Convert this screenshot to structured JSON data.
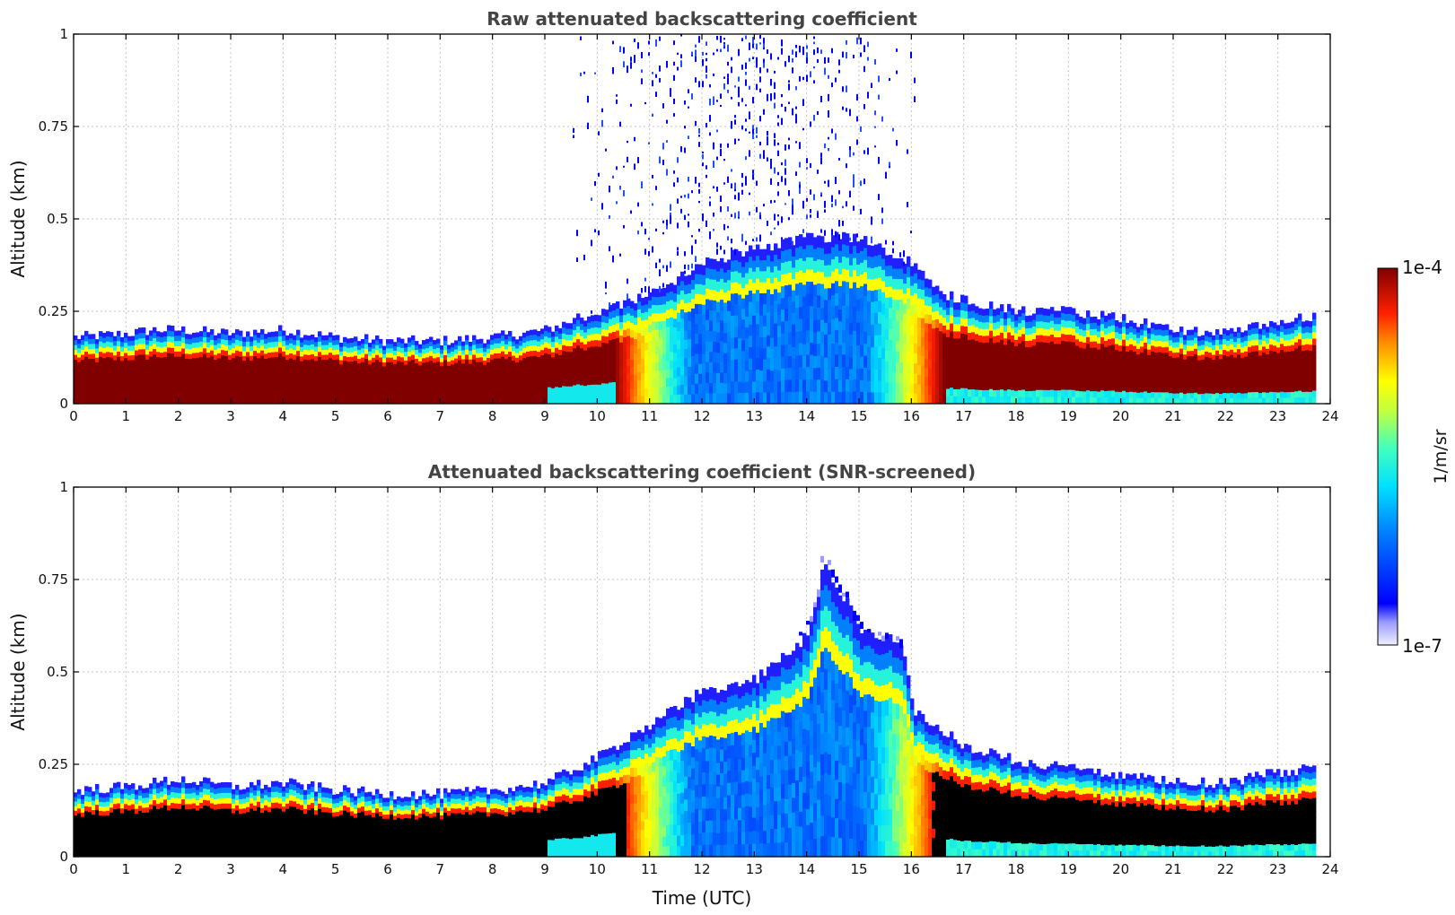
{
  "chart_data": [
    {
      "type": "heatmap",
      "title": "Raw attenuated backscattering coefficient",
      "xlabel": "",
      "ylabel": "Altitude (km)",
      "xlim": [
        0,
        24
      ],
      "ylim": [
        0,
        1
      ],
      "xticks": [
        "0",
        "1",
        "2",
        "3",
        "4",
        "5",
        "6",
        "7",
        "8",
        "9",
        "10",
        "11",
        "12",
        "13",
        "14",
        "15",
        "16",
        "17",
        "18",
        "19",
        "20",
        "21",
        "22",
        "23",
        "24"
      ],
      "yticks": [
        "0",
        "0.25",
        "0.5",
        "0.75",
        "1"
      ],
      "grid": true,
      "screened": false,
      "data_end_hour": 23.7,
      "boundary_layer_top_km": [
        [
          0,
          0.18
        ],
        [
          1,
          0.19
        ],
        [
          1.5,
          0.2
        ],
        [
          2,
          0.2
        ],
        [
          3,
          0.19
        ],
        [
          4,
          0.2
        ],
        [
          5,
          0.18
        ],
        [
          6,
          0.17
        ],
        [
          7,
          0.17
        ],
        [
          8,
          0.18
        ],
        [
          9,
          0.2
        ],
        [
          10,
          0.25
        ],
        [
          11,
          0.3
        ],
        [
          12,
          0.38
        ],
        [
          13,
          0.42
        ],
        [
          14,
          0.45
        ],
        [
          15,
          0.45
        ],
        [
          16,
          0.38
        ],
        [
          16.5,
          0.3
        ],
        [
          17,
          0.28
        ],
        [
          18,
          0.25
        ],
        [
          19,
          0.25
        ],
        [
          20,
          0.23
        ],
        [
          21,
          0.2
        ],
        [
          22,
          0.19
        ],
        [
          23,
          0.22
        ],
        [
          23.7,
          0.24
        ]
      ],
      "noise_region_hours": [
        9.5,
        16.1
      ]
    },
    {
      "type": "heatmap",
      "title": "Attenuated backscattering coefficient (SNR-screened)",
      "xlabel": "Time (UTC)",
      "ylabel": "Altitude (km)",
      "xlim": [
        0,
        24
      ],
      "ylim": [
        0,
        1
      ],
      "xticks": [
        "0",
        "1",
        "2",
        "3",
        "4",
        "5",
        "6",
        "7",
        "8",
        "9",
        "10",
        "11",
        "12",
        "13",
        "14",
        "15",
        "16",
        "17",
        "18",
        "19",
        "20",
        "21",
        "22",
        "23",
        "24"
      ],
      "yticks": [
        "0",
        "0.25",
        "0.5",
        "0.75",
        "1"
      ],
      "grid": true,
      "screened": true,
      "data_end_hour": 23.7,
      "boundary_layer_top_km": [
        [
          0,
          0.18
        ],
        [
          1,
          0.19
        ],
        [
          1.5,
          0.2
        ],
        [
          2,
          0.21
        ],
        [
          3,
          0.19
        ],
        [
          4,
          0.2
        ],
        [
          5,
          0.18
        ],
        [
          6,
          0.17
        ],
        [
          7,
          0.17
        ],
        [
          8,
          0.18
        ],
        [
          9,
          0.2
        ],
        [
          10,
          0.27
        ],
        [
          11,
          0.36
        ],
        [
          12,
          0.45
        ],
        [
          13,
          0.48
        ],
        [
          14,
          0.6
        ],
        [
          14.3,
          0.8
        ],
        [
          15,
          0.62
        ],
        [
          15.8,
          0.58
        ],
        [
          16,
          0.4
        ],
        [
          16.5,
          0.35
        ],
        [
          17,
          0.3
        ],
        [
          18,
          0.26
        ],
        [
          19,
          0.24
        ],
        [
          20,
          0.22
        ],
        [
          21,
          0.2
        ],
        [
          22,
          0.2
        ],
        [
          23,
          0.23
        ],
        [
          23.7,
          0.24
        ]
      ]
    }
  ],
  "colorbar": {
    "label": "1/m/sr",
    "max_label": "1e-4",
    "min_label": "1e-7",
    "colormap": "jet",
    "scale": "log"
  }
}
